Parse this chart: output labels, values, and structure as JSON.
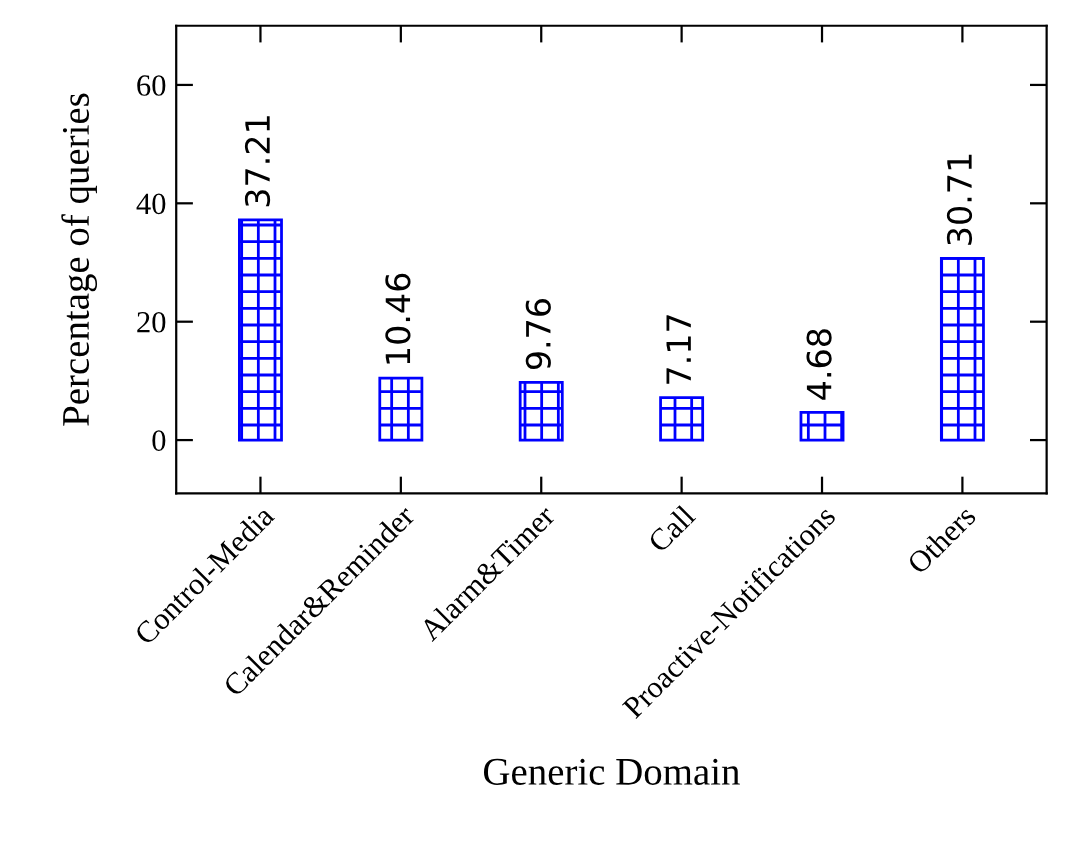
{
  "chart_data": {
    "type": "bar",
    "xlabel": "Generic Domain",
    "ylabel": "Percentage of queries",
    "categories": [
      "Control-Media",
      "Calendar&Reminder",
      "Alarm&Timer",
      "Call",
      "Proactive-Notifications",
      "Others"
    ],
    "values": [
      37.21,
      10.46,
      9.76,
      7.17,
      4.68,
      30.71
    ],
    "color": "#0000ff",
    "ylim": [
      -9,
      70
    ],
    "yticks": [
      0,
      20,
      40,
      60
    ],
    "data_labels": true,
    "grid": false,
    "legend": false
  }
}
